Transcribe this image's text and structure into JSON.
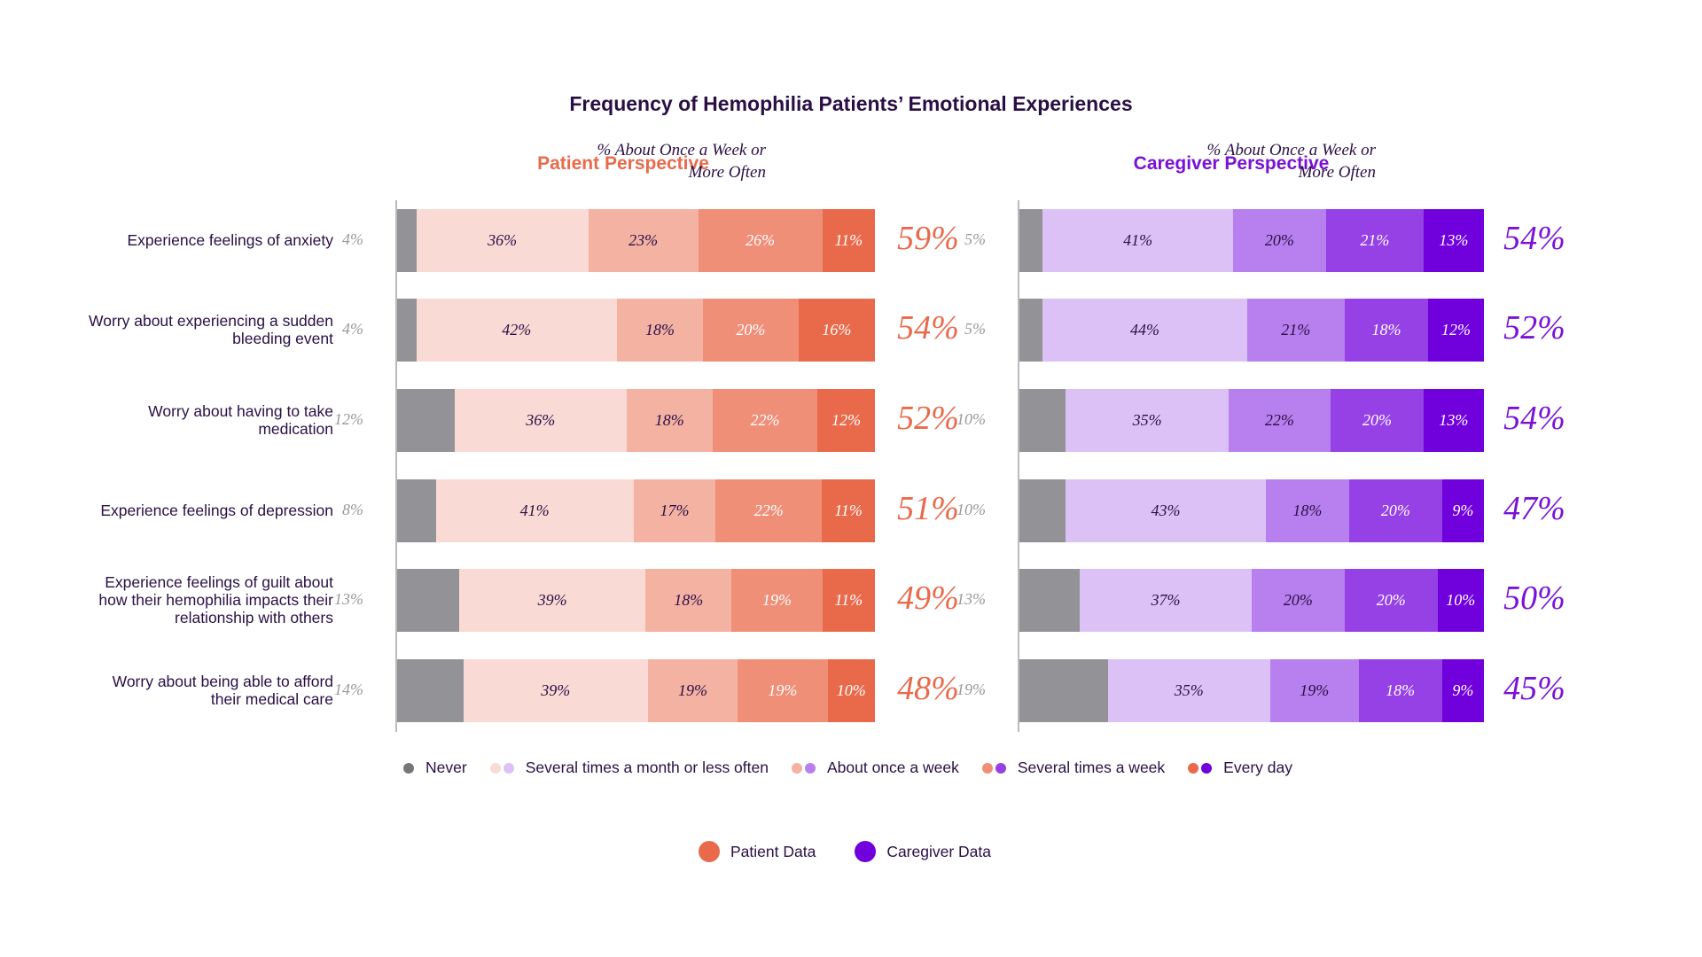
{
  "chart_data": {
    "type": "stacked-bar",
    "title": "Frequency of Hemophilia Patients’ Emotional Experiences",
    "categories": [
      "Experience feelings of anxiety",
      "Worry about experiencing a sudden bleeding event",
      "Worry about having to take medication",
      "Experience feelings of depression",
      "Experience feelings of guilt about how their hemophilia impacts their relationship with others",
      "Worry about being able to afford their medical care"
    ],
    "legend": [
      "Never",
      "Several times a month or less often",
      "About once a week",
      "Several times a week",
      "Every day"
    ],
    "summary_header": "% About Once a Week or More Often",
    "panels": [
      {
        "title": "Patient Perspective",
        "colors": [
          "#939397",
          "#f9dad4",
          "#f4b2a3",
          "#ef8f78",
          "#e96a4b"
        ],
        "accent": "#e96a4b",
        "series": [
          {
            "name": "Never",
            "values": [
              4,
              4,
              12,
              8,
              13,
              14
            ]
          },
          {
            "name": "Several times a month or less often",
            "values": [
              36,
              42,
              36,
              41,
              39,
              39
            ]
          },
          {
            "name": "About once a week",
            "values": [
              23,
              18,
              18,
              17,
              18,
              19
            ]
          },
          {
            "name": "Several times a week",
            "values": [
              26,
              20,
              22,
              22,
              19,
              19
            ]
          },
          {
            "name": "Every day",
            "values": [
              11,
              16,
              12,
              11,
              11,
              10
            ]
          }
        ],
        "summary": [
          59,
          54,
          52,
          51,
          49,
          48
        ]
      },
      {
        "title": "Caregiver Perspective",
        "colors": [
          "#939397",
          "#dcc1f6",
          "#b87fee",
          "#9541e6",
          "#7000dc"
        ],
        "accent": "#7a12d6",
        "series": [
          {
            "name": "Never",
            "values": [
              5,
              5,
              10,
              10,
              13,
              19
            ]
          },
          {
            "name": "Several times a month or less often",
            "values": [
              41,
              44,
              35,
              43,
              37,
              35
            ]
          },
          {
            "name": "About once a week",
            "values": [
              20,
              21,
              22,
              18,
              20,
              19
            ]
          },
          {
            "name": "Several times a week",
            "values": [
              21,
              18,
              20,
              20,
              20,
              18
            ]
          },
          {
            "name": "Every day",
            "values": [
              13,
              12,
              13,
              9,
              10,
              9
            ]
          }
        ],
        "summary": [
          54,
          52,
          54,
          47,
          50,
          45
        ]
      }
    ],
    "data_legend": [
      {
        "label": "Patient Data",
        "color": "#e96a4b"
      },
      {
        "label": "Caregiver Data",
        "color": "#7000dc"
      }
    ]
  }
}
